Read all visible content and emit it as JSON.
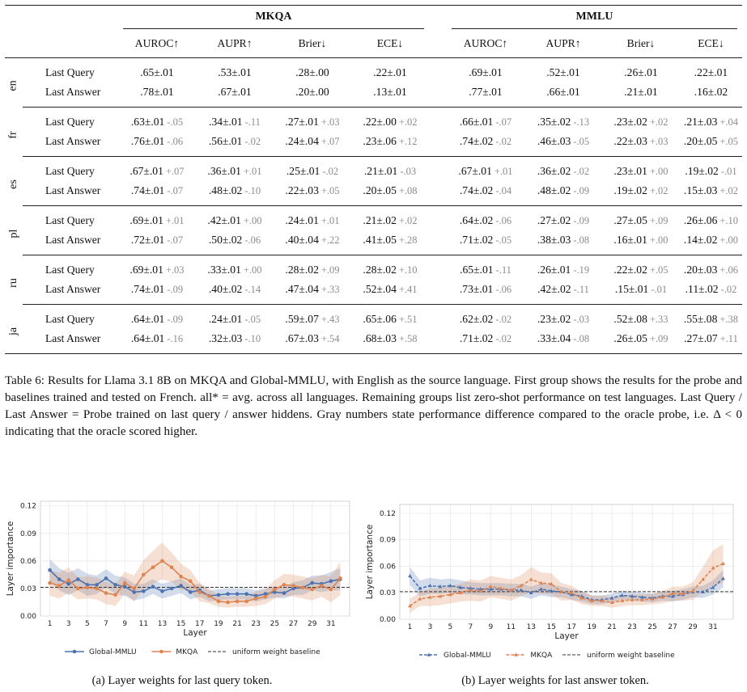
{
  "table": {
    "groups": [
      "MKQA",
      "MMLU"
    ],
    "metrics": [
      "AUROC↑",
      "AUPR↑",
      "Brier↓",
      "ECE↓"
    ],
    "blocks": [
      {
        "lang": "en",
        "rows": [
          {
            "label": "Last Query",
            "cells": [
              [
                ".65±.01",
                ""
              ],
              [
                ".53±.01",
                ""
              ],
              [
                ".28±.00",
                ""
              ],
              [
                ".22±.01",
                ""
              ],
              [
                ".69±.01",
                ""
              ],
              [
                ".52±.01",
                ""
              ],
              [
                ".26±.01",
                ""
              ],
              [
                ".22±.01",
                ""
              ]
            ]
          },
          {
            "label": "Last Answer",
            "cells": [
              [
                ".78±.01",
                ""
              ],
              [
                ".67±.01",
                ""
              ],
              [
                ".20±.00",
                ""
              ],
              [
                ".13±.01",
                ""
              ],
              [
                ".77±.01",
                ""
              ],
              [
                ".66±.01",
                ""
              ],
              [
                ".21±.01",
                ""
              ],
              [
                ".16±.02",
                ""
              ]
            ]
          }
        ]
      },
      {
        "lang": "fr",
        "rows": [
          {
            "label": "Last Query",
            "cells": [
              [
                ".63±.01",
                "-.05"
              ],
              [
                ".34±.01",
                "-.11"
              ],
              [
                ".27±.01",
                "+.03"
              ],
              [
                ".22±.00",
                "+.02"
              ],
              [
                ".66±.01",
                "-.07"
              ],
              [
                ".35±.02",
                "-.13"
              ],
              [
                ".23±.02",
                "+.02"
              ],
              [
                ".21±.03",
                "+.04"
              ]
            ]
          },
          {
            "label": "Last Answer",
            "cells": [
              [
                ".76±.01",
                "-.06"
              ],
              [
                ".56±.01",
                "-.02"
              ],
              [
                ".24±.04",
                "+.07"
              ],
              [
                ".23±.06",
                "+.12"
              ],
              [
                ".74±.02",
                "-.02"
              ],
              [
                ".46±.03",
                "-.05"
              ],
              [
                ".22±.03",
                "+.03"
              ],
              [
                ".20±.05",
                "+.05"
              ]
            ]
          }
        ]
      },
      {
        "lang": "es",
        "rows": [
          {
            "label": "Last Query",
            "cells": [
              [
                ".67±.01",
                "+.07"
              ],
              [
                ".36±.01",
                "+.01"
              ],
              [
                ".25±.01",
                "-.02"
              ],
              [
                ".21±.01",
                "-.03"
              ],
              [
                ".67±.01",
                "+.01"
              ],
              [
                ".36±.02",
                "-.02"
              ],
              [
                ".23±.01",
                "+.00"
              ],
              [
                ".19±.02",
                "-.01"
              ]
            ]
          },
          {
            "label": "Last Answer",
            "cells": [
              [
                ".74±.01",
                "-.07"
              ],
              [
                ".48±.02",
                "-.10"
              ],
              [
                ".22±.03",
                "+.05"
              ],
              [
                ".20±.05",
                "+.08"
              ],
              [
                ".74±.02",
                "-.04"
              ],
              [
                ".48±.02",
                "-.09"
              ],
              [
                ".19±.02",
                "+.02"
              ],
              [
                ".15±.03",
                "+.02"
              ]
            ]
          }
        ]
      },
      {
        "lang": "pl",
        "rows": [
          {
            "label": "Last Query",
            "cells": [
              [
                ".69±.01",
                "+.01"
              ],
              [
                ".42±.01",
                "+.00"
              ],
              [
                ".24±.01",
                "+.01"
              ],
              [
                ".21±.02",
                "+.02"
              ],
              [
                ".64±.02",
                "-.06"
              ],
              [
                ".27±.02",
                "-.09"
              ],
              [
                ".27±.05",
                "+.09"
              ],
              [
                ".26±.06",
                "+.10"
              ]
            ]
          },
          {
            "label": "Last Answer",
            "cells": [
              [
                ".72±.01",
                "-.07"
              ],
              [
                ".50±.02",
                "-.06"
              ],
              [
                ".40±.04",
                "+.22"
              ],
              [
                ".41±.05",
                "+.28"
              ],
              [
                ".71±.02",
                "-.05"
              ],
              [
                ".38±.03",
                "-.08"
              ],
              [
                ".16±.01",
                "+.00"
              ],
              [
                ".14±.02",
                "+.00"
              ]
            ]
          }
        ]
      },
      {
        "lang": "ru",
        "rows": [
          {
            "label": "Last Query",
            "cells": [
              [
                ".69±.01",
                "+.03"
              ],
              [
                ".33±.01",
                "+.00"
              ],
              [
                ".28±.02",
                "+.09"
              ],
              [
                ".28±.02",
                "+.10"
              ],
              [
                ".65±.01",
                "-.11"
              ],
              [
                ".26±.01",
                "-.19"
              ],
              [
                ".22±.02",
                "+.05"
              ],
              [
                ".20±.03",
                "+.06"
              ]
            ]
          },
          {
            "label": "Last Answer",
            "cells": [
              [
                ".74±.01",
                "-.09"
              ],
              [
                ".40±.02",
                "-.14"
              ],
              [
                ".47±.04",
                "+.33"
              ],
              [
                ".52±.04",
                "+.41"
              ],
              [
                ".73±.01",
                "-.06"
              ],
              [
                ".42±.02",
                "-.11"
              ],
              [
                ".15±.01",
                "-.01"
              ],
              [
                ".11±.02",
                "-.02"
              ]
            ]
          }
        ]
      },
      {
        "lang": "ja",
        "rows": [
          {
            "label": "Last Query",
            "cells": [
              [
                ".64±.01",
                "-.09"
              ],
              [
                ".24±.01",
                "-.05"
              ],
              [
                ".59±.07",
                "+.43"
              ],
              [
                ".65±.06",
                "+.51"
              ],
              [
                ".62±.02",
                "-.02"
              ],
              [
                ".23±.02",
                "-.03"
              ],
              [
                ".52±.08",
                "+.33"
              ],
              [
                ".55±.08",
                "+.38"
              ]
            ]
          },
          {
            "label": "Last Answer",
            "cells": [
              [
                ".64±.01",
                "-.16"
              ],
              [
                ".32±.03",
                "-.10"
              ],
              [
                ".67±.03",
                "+.54"
              ],
              [
                ".68±.03",
                "+.58"
              ],
              [
                ".71±.02",
                "-.02"
              ],
              [
                ".33±.04",
                "-.08"
              ],
              [
                ".26±.05",
                "+.09"
              ],
              [
                ".27±.07",
                "+.11"
              ]
            ]
          }
        ]
      }
    ]
  },
  "caption": {
    "label": "Table 6:",
    "text": "Results for Llama 3.1 8B on MKQA and Global-MMLU, with English as the source language. First group shows the results for the probe and baselines trained and tested on French. all* = avg. across all languages. Remaining groups list zero-shot performance on test languages. Last Query / Last Answer = Probe trained on last query / answer hiddens. Gray numbers state performance difference compared to the oracle probe, i.e. Δ < 0 indicating that the oracle scored higher."
  },
  "colors": {
    "global_mmlu": "#4c72b0",
    "mkqa": "#dd8452",
    "baseline": "#333333"
  },
  "chart_data": [
    {
      "type": "line",
      "caption": "(a) Layer weights for last query token.",
      "xlabel": "Layer",
      "ylabel": "Layer importance",
      "xlim": [
        0,
        33
      ],
      "ylim": [
        0,
        0.125
      ],
      "xticks": [
        1,
        3,
        5,
        7,
        9,
        11,
        13,
        15,
        17,
        19,
        21,
        23,
        25,
        27,
        29,
        31
      ],
      "yticks": [
        0.0,
        0.03,
        0.06,
        0.09,
        0.12
      ],
      "ytick_labels": [
        "0.00",
        "0.03",
        "0.06",
        "0.09",
        "0.12"
      ],
      "grid": true,
      "legend": "bottom",
      "baseline": {
        "name": "uniform weight baseline",
        "value": 0.03125
      },
      "x": [
        1,
        2,
        3,
        4,
        5,
        6,
        7,
        8,
        9,
        10,
        11,
        12,
        13,
        14,
        15,
        16,
        17,
        18,
        19,
        20,
        21,
        22,
        23,
        24,
        25,
        26,
        27,
        28,
        29,
        30,
        31,
        32
      ],
      "series": [
        {
          "name": "Global-MMLU",
          "style": "solid-circle",
          "values": [
            0.05,
            0.04,
            0.035,
            0.04,
            0.034,
            0.034,
            0.041,
            0.034,
            0.032,
            0.026,
            0.027,
            0.032,
            0.027,
            0.03,
            0.033,
            0.026,
            0.028,
            0.022,
            0.023,
            0.024,
            0.024,
            0.024,
            0.022,
            0.024,
            0.026,
            0.025,
            0.03,
            0.031,
            0.036,
            0.035,
            0.038,
            0.04
          ],
          "band": [
            0.012,
            0.012,
            0.012,
            0.012,
            0.012,
            0.01,
            0.01,
            0.01,
            0.01,
            0.009,
            0.008,
            0.008,
            0.008,
            0.008,
            0.008,
            0.008,
            0.007,
            0.006,
            0.006,
            0.006,
            0.006,
            0.006,
            0.006,
            0.006,
            0.006,
            0.006,
            0.007,
            0.008,
            0.008,
            0.009,
            0.01,
            0.012
          ]
        },
        {
          "name": "MKQA",
          "style": "solid-circle",
          "values": [
            0.036,
            0.033,
            0.039,
            0.03,
            0.031,
            0.03,
            0.025,
            0.023,
            0.036,
            0.03,
            0.045,
            0.053,
            0.06,
            0.053,
            0.043,
            0.038,
            0.026,
            0.022,
            0.016,
            0.015,
            0.016,
            0.016,
            0.019,
            0.021,
            0.029,
            0.034,
            0.033,
            0.031,
            0.029,
            0.033,
            0.029,
            0.041
          ],
          "band": [
            0.014,
            0.014,
            0.014,
            0.012,
            0.012,
            0.012,
            0.012,
            0.012,
            0.012,
            0.014,
            0.016,
            0.018,
            0.02,
            0.016,
            0.014,
            0.012,
            0.01,
            0.008,
            0.006,
            0.006,
            0.006,
            0.006,
            0.008,
            0.008,
            0.01,
            0.012,
            0.012,
            0.012,
            0.012,
            0.012,
            0.014,
            0.018
          ]
        }
      ]
    },
    {
      "type": "line",
      "caption": "(b) Layer weights for last answer token.",
      "xlabel": "Layer",
      "ylabel": "Layer importance",
      "xlim": [
        0,
        33
      ],
      "ylim": [
        0,
        0.13
      ],
      "xticks": [
        1,
        3,
        5,
        7,
        9,
        11,
        13,
        15,
        17,
        19,
        21,
        23,
        25,
        27,
        29,
        31
      ],
      "yticks": [
        0.0,
        0.03,
        0.06,
        0.09,
        0.12
      ],
      "ytick_labels": [
        "0.00",
        "0.03",
        "0.06",
        "0.09",
        "0.12"
      ],
      "grid": true,
      "legend": "bottom",
      "baseline": {
        "name": "uniform weight baseline",
        "value": 0.03125
      },
      "x": [
        1,
        2,
        3,
        4,
        5,
        6,
        7,
        8,
        9,
        10,
        11,
        12,
        13,
        14,
        15,
        16,
        17,
        18,
        19,
        20,
        21,
        22,
        23,
        24,
        25,
        26,
        27,
        28,
        29,
        30,
        31,
        32
      ],
      "series": [
        {
          "name": "Global-MMLU",
          "style": "dashed-triangle",
          "values": [
            0.049,
            0.035,
            0.038,
            0.037,
            0.038,
            0.036,
            0.035,
            0.034,
            0.034,
            0.034,
            0.033,
            0.033,
            0.03,
            0.034,
            0.032,
            0.031,
            0.028,
            0.026,
            0.022,
            0.022,
            0.024,
            0.027,
            0.026,
            0.025,
            0.024,
            0.026,
            0.026,
            0.028,
            0.031,
            0.031,
            0.036,
            0.046
          ],
          "band": [
            0.01,
            0.009,
            0.009,
            0.008,
            0.008,
            0.008,
            0.007,
            0.007,
            0.007,
            0.007,
            0.007,
            0.007,
            0.007,
            0.007,
            0.007,
            0.006,
            0.006,
            0.006,
            0.005,
            0.005,
            0.005,
            0.005,
            0.005,
            0.005,
            0.005,
            0.005,
            0.006,
            0.006,
            0.006,
            0.007,
            0.008,
            0.01
          ]
        },
        {
          "name": "MKQA",
          "style": "dashed-triangle",
          "values": [
            0.015,
            0.023,
            0.025,
            0.026,
            0.028,
            0.03,
            0.033,
            0.032,
            0.037,
            0.035,
            0.033,
            0.038,
            0.045,
            0.041,
            0.04,
            0.031,
            0.03,
            0.024,
            0.021,
            0.021,
            0.019,
            0.021,
            0.022,
            0.022,
            0.023,
            0.025,
            0.029,
            0.029,
            0.032,
            0.045,
            0.058,
            0.063
          ],
          "band": [
            0.008,
            0.008,
            0.01,
            0.01,
            0.01,
            0.01,
            0.012,
            0.012,
            0.012,
            0.012,
            0.012,
            0.012,
            0.014,
            0.012,
            0.012,
            0.01,
            0.008,
            0.007,
            0.006,
            0.006,
            0.006,
            0.006,
            0.006,
            0.006,
            0.006,
            0.007,
            0.008,
            0.008,
            0.01,
            0.014,
            0.02,
            0.022
          ]
        }
      ]
    }
  ]
}
